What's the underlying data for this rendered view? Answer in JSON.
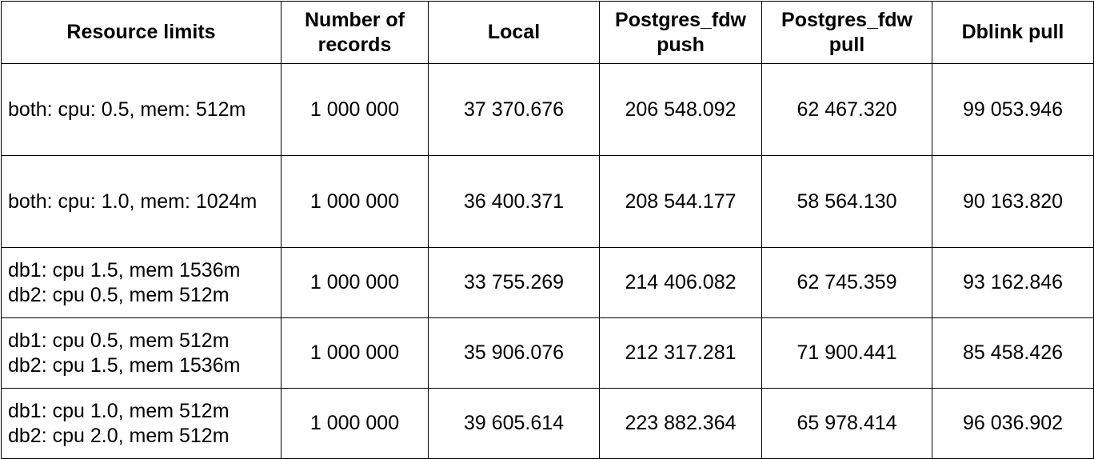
{
  "table": {
    "headers": [
      {
        "lines": [
          "Resource limits"
        ]
      },
      {
        "lines": [
          "Number of",
          "records"
        ]
      },
      {
        "lines": [
          "Local"
        ]
      },
      {
        "lines": [
          "Postgres_fdw",
          "push"
        ]
      },
      {
        "lines": [
          "Postgres_fdw",
          "pull"
        ]
      },
      {
        "lines": [
          "Dblink pull"
        ]
      }
    ],
    "rows": [
      {
        "limits": [
          "both: cpu: 0.5, mem: 512m"
        ],
        "records": "1 000 000",
        "local": "37 370.676",
        "fdw_push": "206 548.092",
        "fdw_pull": "62 467.320",
        "dblink_pull": "99 053.946"
      },
      {
        "limits": [
          "both: cpu: 1.0, mem: 1024m"
        ],
        "records": "1 000 000",
        "local": "36 400.371",
        "fdw_push": "208 544.177",
        "fdw_pull": "58 564.130",
        "dblink_pull": "90 163.820"
      },
      {
        "limits": [
          "db1: cpu 1.5, mem 1536m",
          "db2: cpu 0.5, mem 512m"
        ],
        "records": "1 000 000",
        "local": "33 755.269",
        "fdw_push": "214 406.082",
        "fdw_pull": "62 745.359",
        "dblink_pull": "93 162.846"
      },
      {
        "limits": [
          "db1: cpu 0.5, mem 512m",
          "db2: cpu 1.5, mem 1536m"
        ],
        "records": "1 000 000",
        "local": "35 906.076",
        "fdw_push": "212 317.281",
        "fdw_pull": "71 900.441",
        "dblink_pull": "85 458.426"
      },
      {
        "limits": [
          "db1: cpu 1.0, mem 512m",
          "db2: cpu 2.0, mem 512m"
        ],
        "records": "1 000 000",
        "local": "39 605.614",
        "fdw_push": "223 882.364",
        "fdw_pull": "65 978.414",
        "dblink_pull": "96 036.902"
      }
    ]
  }
}
